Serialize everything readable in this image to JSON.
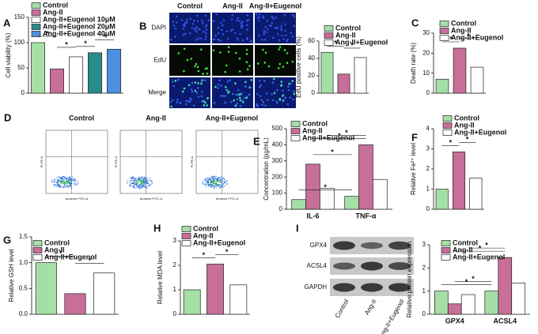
{
  "chart_data": [
    {
      "type": "bar",
      "panel": "A",
      "y_label": "Cell viability (%)",
      "ylim": [
        0,
        150
      ],
      "yticks": [
        0,
        50,
        100,
        150
      ],
      "series": [
        {
          "name": "Control",
          "color": "#a6dfa6",
          "values": [
            100
          ]
        },
        {
          "name": "Ang-II",
          "color": "#c76f98",
          "values": [
            48
          ]
        },
        {
          "name": "Ang-II+Eugenol 10μM",
          "color": "#ffffff",
          "values": [
            72
          ]
        },
        {
          "name": "Ang-II+Eugenol 20μM",
          "color": "#2b8c8c",
          "values": [
            80
          ]
        },
        {
          "name": "Ang-II+Eugenol 40μM",
          "color": "#4b8fe0",
          "values": [
            87
          ]
        }
      ],
      "annotations": [
        "*",
        "*",
        "*",
        "*"
      ]
    },
    {
      "type": "bar",
      "panel": "B",
      "y_label": "EdU positive cells (%)",
      "ylim": [
        0,
        60
      ],
      "yticks": [
        0,
        20,
        40,
        60
      ],
      "series": [
        {
          "name": "Control",
          "color": "#a6dfa6",
          "values": [
            47
          ]
        },
        {
          "name": "Ang-II",
          "color": "#c76f98",
          "values": [
            22
          ]
        },
        {
          "name": "Ang-II+Eugenol",
          "color": "#ffffff",
          "values": [
            41
          ]
        }
      ],
      "annotations": [
        "*",
        "*"
      ]
    },
    {
      "type": "bar",
      "panel": "C",
      "y_label": "Death rate (%)",
      "ylim": [
        0,
        30
      ],
      "yticks": [
        0,
        10,
        20,
        30
      ],
      "series": [
        {
          "name": "Control",
          "color": "#a6dfa6",
          "values": [
            7
          ]
        },
        {
          "name": "Ang-II",
          "color": "#c76f98",
          "values": [
            22.5
          ]
        },
        {
          "name": "Ang-II+Eugenol",
          "color": "#ffffff",
          "values": [
            13
          ]
        }
      ],
      "annotations": [
        "*",
        "*"
      ]
    },
    {
      "type": "bar",
      "panel": "E",
      "y_label": "Concentration (pg/mL)",
      "ylim": [
        0,
        500
      ],
      "yticks": [
        0,
        100,
        200,
        300,
        400,
        500
      ],
      "categories": [
        "IL-6",
        "TNF-α"
      ],
      "series": [
        {
          "name": "Control",
          "color": "#a6dfa6",
          "values": [
            60,
            80
          ]
        },
        {
          "name": "Ang-II",
          "color": "#c76f98",
          "values": [
            280,
            400
          ]
        },
        {
          "name": "Ang-II+Eugenol",
          "color": "#ffffff",
          "values": [
            130,
            185
          ]
        }
      ],
      "annotations": [
        "*",
        "*",
        "*",
        "*"
      ]
    },
    {
      "type": "bar",
      "panel": "F",
      "y_label": "Relative Fe²⁺ level",
      "ylim": [
        0,
        4
      ],
      "yticks": [
        0,
        1,
        2,
        3,
        4
      ],
      "series": [
        {
          "name": "Control",
          "color": "#a6dfa6",
          "values": [
            1.0
          ]
        },
        {
          "name": "Ang-II",
          "color": "#c76f98",
          "values": [
            2.85
          ]
        },
        {
          "name": "Ang-II+Eugenol",
          "color": "#ffffff",
          "values": [
            1.55
          ]
        }
      ],
      "annotations": [
        "*",
        "*"
      ]
    },
    {
      "type": "bar",
      "panel": "G",
      "y_label": "Relative GSH level",
      "ylim": [
        0,
        1.5
      ],
      "yticks": [
        {
          "value": 0,
          "label": "0.0"
        },
        {
          "value": 0.5,
          "label": "0.5"
        },
        {
          "value": 1,
          "label": "1.0"
        },
        {
          "value": 1.5,
          "label": "1.5"
        }
      ],
      "series": [
        {
          "name": "Control",
          "color": "#a6dfa6",
          "values": [
            1.0
          ]
        },
        {
          "name": "Ang-II",
          "color": "#c76f98",
          "values": [
            0.4
          ]
        },
        {
          "name": "Ang-II+Eugenol",
          "color": "#ffffff",
          "values": [
            0.8
          ]
        }
      ],
      "annotations": [
        "*",
        "*"
      ]
    },
    {
      "type": "bar",
      "panel": "H",
      "y_label": "Relative MDA level",
      "ylim": [
        0,
        3
      ],
      "yticks": [
        0,
        1,
        2,
        3
      ],
      "series": [
        {
          "name": "Control",
          "color": "#a6dfa6",
          "values": [
            1.0
          ]
        },
        {
          "name": "Ang-II",
          "color": "#c76f98",
          "values": [
            2.05
          ]
        },
        {
          "name": "Ang-II+Eugenol",
          "color": "#ffffff",
          "values": [
            1.2
          ]
        }
      ],
      "annotations": [
        "*",
        "*"
      ]
    },
    {
      "type": "bar",
      "panel": "I",
      "y_label": "Relative protein expression",
      "ylim": [
        0,
        3
      ],
      "yticks": [
        0,
        1,
        2,
        3
      ],
      "categories": [
        "GPX4",
        "ACSL4"
      ],
      "series": [
        {
          "name": "Control",
          "color": "#a6dfa6",
          "values": [
            1.0,
            1.0
          ]
        },
        {
          "name": "Ang-II",
          "color": "#c76f98",
          "values": [
            0.45,
            2.45
          ]
        },
        {
          "name": "Ang-II+Eugenol",
          "color": "#ffffff",
          "values": [
            0.85,
            1.35
          ]
        }
      ],
      "annotations": [
        "*",
        "*",
        "*",
        "*"
      ]
    }
  ],
  "image_panels": {
    "B": {
      "panel": "B",
      "columns": [
        "Control",
        "Ang-II",
        "Ang-II+Eugenol"
      ],
      "rows": [
        "DAPI",
        "EdU",
        "Merge"
      ]
    },
    "D": {
      "panel": "D",
      "titles": [
        "Control",
        "Ang-II",
        "Ang-II+Eugenol"
      ],
      "x_label": "Annexin FITC-A",
      "y_label": "PI-PE-A"
    },
    "I": {
      "bands": [
        "GPX4",
        "ACSL4",
        "GAPDH"
      ],
      "lanes": [
        "Control",
        "Ang-II",
        "Ang-II+Eugenol"
      ]
    }
  }
}
